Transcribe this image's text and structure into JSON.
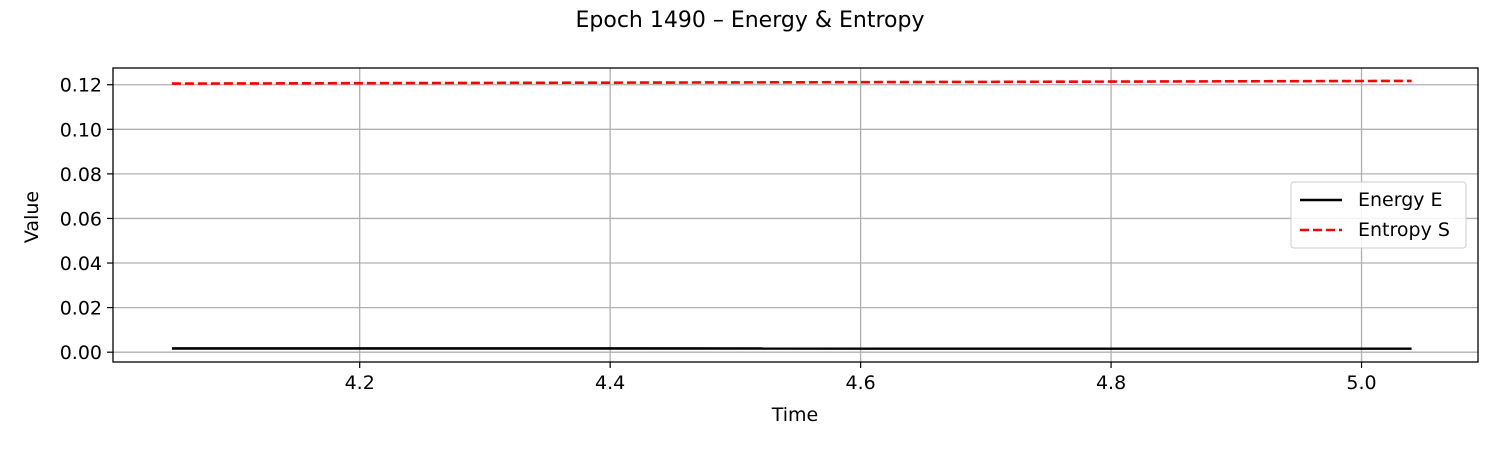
{
  "chart_data": {
    "type": "line",
    "title": "Epoch 1490 – Energy & Entropy",
    "xlabel": "Time",
    "ylabel": "Value",
    "xlim": [
      4.003,
      5.093
    ],
    "ylim": [
      -0.0044,
      0.1275
    ],
    "x_ticks": [
      4.2,
      4.4,
      4.6,
      4.8,
      5.0
    ],
    "x_tick_labels": [
      "4.2",
      "4.4",
      "4.6",
      "4.8",
      "5.0"
    ],
    "y_ticks": [
      0.0,
      0.02,
      0.04,
      0.06,
      0.08,
      0.1,
      0.12
    ],
    "y_tick_labels": [
      "0.00",
      "0.02",
      "0.04",
      "0.06",
      "0.08",
      "0.10",
      "0.12"
    ],
    "grid": true,
    "legend_position": "right",
    "series": [
      {
        "name": "Energy E",
        "color": "#000000",
        "style": "solid",
        "x": [
          4.05,
          5.04
        ],
        "y": [
          0.0017,
          0.0016
        ]
      },
      {
        "name": "Entropy S",
        "color": "#ff0000",
        "style": "dashed",
        "x": [
          4.05,
          4.3,
          4.55,
          4.8,
          5.04
        ],
        "y": [
          0.1205,
          0.1208,
          0.1211,
          0.1214,
          0.1217
        ]
      }
    ]
  }
}
